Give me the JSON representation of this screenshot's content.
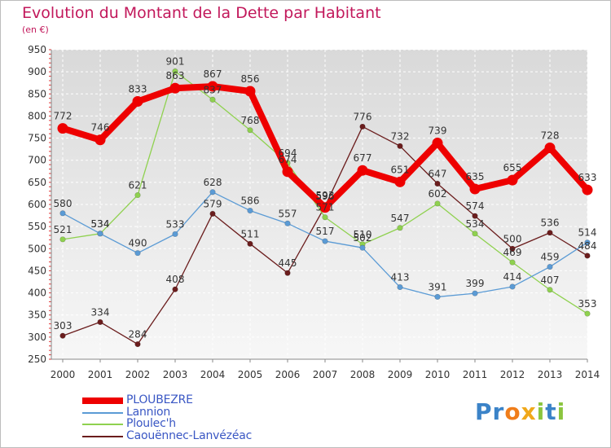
{
  "header": {
    "title": "Evolution du Montant de la Dette par Habitant",
    "subtitle": "(en €)"
  },
  "colors": {
    "title": "#c2185b",
    "legend_text": "#3a57c4"
  },
  "chart_data": {
    "type": "line",
    "title": "Evolution du Montant de la Dette par Habitant",
    "subtitle": "(en €)",
    "xlabel": "",
    "ylabel": "",
    "x": [
      "2000",
      "2001",
      "2002",
      "2003",
      "2004",
      "2005",
      "2006",
      "2007",
      "2008",
      "2009",
      "2010",
      "2011",
      "2012",
      "2013",
      "2014"
    ],
    "ylim": [
      250,
      950
    ],
    "yticks": [
      250,
      300,
      350,
      400,
      450,
      500,
      550,
      600,
      650,
      700,
      750,
      800,
      850,
      900,
      950
    ],
    "grid": true,
    "legend_position": "bottom-left",
    "series": [
      {
        "name": "PLOUBEZRE",
        "color": "#ee0000",
        "values": [
          772,
          746,
          833,
          863,
          867,
          856,
          674,
          593,
          677,
          651,
          739,
          635,
          655,
          728,
          633
        ]
      },
      {
        "name": "Lannion",
        "color": "#5b9bd5",
        "values": [
          580,
          534,
          490,
          533,
          628,
          586,
          557,
          517,
          502,
          413,
          391,
          399,
          414,
          459,
          514
        ]
      },
      {
        "name": "Ploulec'h",
        "color": "#8fd14f",
        "values": [
          521,
          534,
          621,
          901,
          837,
          768,
          694,
          571,
          510,
          547,
          602,
          534,
          469,
          407,
          353
        ]
      },
      {
        "name": "Caouënnec-Lanvézéac",
        "color": "#6b1d1d",
        "values": [
          303,
          334,
          284,
          408,
          579,
          511,
          445,
          596,
          776,
          732,
          647,
          574,
          500,
          536,
          484
        ]
      }
    ]
  },
  "logo": {
    "letters": [
      "P",
      "r",
      "o",
      "x",
      "i",
      "t",
      "i"
    ],
    "colors": [
      "#3b83c8",
      "#3b83c8",
      "#f07d1a",
      "#f0a81a",
      "#8bc53f",
      "#3b83c8",
      "#8bc53f"
    ]
  }
}
